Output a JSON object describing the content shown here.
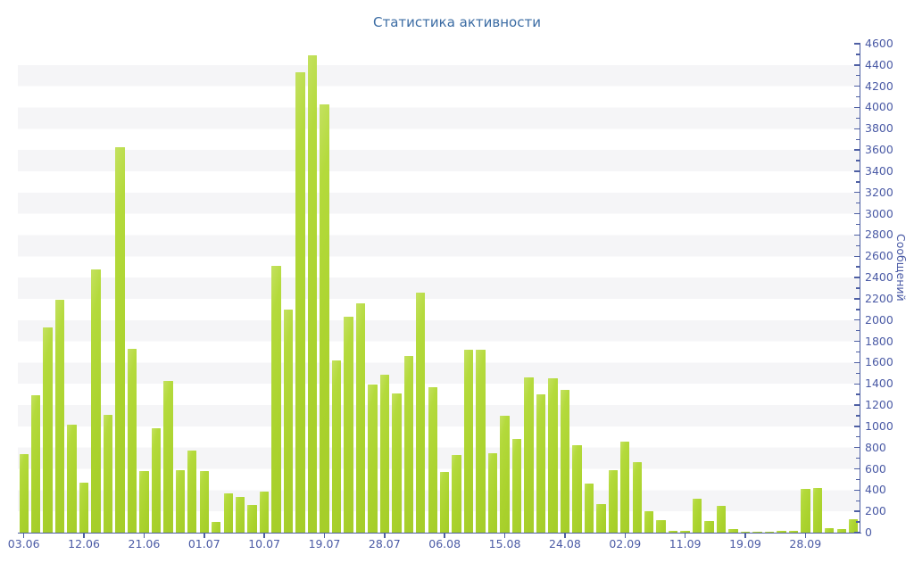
{
  "title": "Статистика активности",
  "colors": {
    "bar": "#abd32e",
    "axis_line": "#4e5fa3",
    "tick_text": "#4a5aa5",
    "title_text": "#3a6ba3",
    "band_white": "#ffffff",
    "band_gray": "#f5f5f7"
  },
  "chart_data": {
    "type": "bar",
    "title": "Статистика активности",
    "xlabel": "",
    "ylabel": "Сообщений",
    "ylim": [
      0,
      4600
    ],
    "y_major_step": 200,
    "y_minor_step": 100,
    "grid": "alternating horizontal bands",
    "legend": "none",
    "y_tick_labels": [
      "0",
      "200",
      "400",
      "600",
      "800",
      "1000",
      "1200",
      "1400",
      "1600",
      "1800",
      "2000",
      "2200",
      "2400",
      "2600",
      "2800",
      "3000",
      "3200",
      "3400",
      "3600",
      "3800",
      "4000",
      "4200",
      "4400",
      "4600"
    ],
    "x_tick_labels": [
      "03.06",
      "12.06",
      "21.06",
      "01.07",
      "10.07",
      "19.07",
      "28.07",
      "06.08",
      "15.08",
      "24.08",
      "02.09",
      "11.09",
      "19.09",
      "28.09"
    ],
    "x_label_every_n_bars": 5,
    "values": [
      740,
      1290,
      1930,
      2190,
      1020,
      470,
      2480,
      1110,
      3630,
      1730,
      580,
      980,
      1430,
      590,
      770,
      580,
      100,
      370,
      340,
      260,
      390,
      2510,
      2100,
      4330,
      4490,
      4030,
      1620,
      2030,
      2160,
      1390,
      1490,
      1310,
      1660,
      2260,
      1370,
      570,
      730,
      1720,
      1720,
      750,
      1100,
      880,
      1460,
      1300,
      1450,
      1340,
      820,
      460,
      270,
      590,
      860,
      660,
      200,
      120,
      15,
      20,
      320,
      110,
      250,
      30,
      10,
      10,
      10,
      15,
      15,
      410,
      420,
      40,
      30,
      130
    ]
  }
}
